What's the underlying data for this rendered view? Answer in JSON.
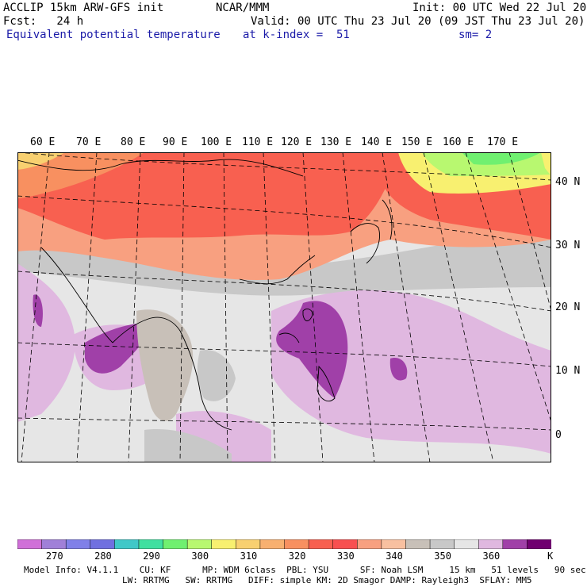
{
  "header": {
    "model": "ACCLIP 15km ARW-GFS init",
    "org": "NCAR/MMM",
    "init": "Init: 00 UTC Wed 22 Jul 20",
    "fcst": "Fcst:   24 h",
    "valid": "Valid: 00 UTC Thu 23 Jul 20 (09 JST Thu 23 Jul 20)",
    "field": "Equivalent potential temperature",
    "level": "at k-index =  51",
    "smooth": "sm= 2"
  },
  "longitudes": [
    "60 E",
    "70 E",
    "80 E",
    "90 E",
    "100 E",
    "110 E",
    "120 E",
    "130 E",
    "140 E",
    "150 E",
    "160 E",
    "170 E"
  ],
  "latitudes": [
    "40 N",
    "30 N",
    "20 N",
    "10 N",
    "0"
  ],
  "colorbar": {
    "colors": [
      "#d070d8",
      "#a080d8",
      "#8080e8",
      "#7070e0",
      "#40c8c8",
      "#40e0a0",
      "#70f070",
      "#b8f870",
      "#f8f070",
      "#f8d070",
      "#f8b070",
      "#f89060",
      "#f86050",
      "#f85050",
      "#f8a080",
      "#f8c0a0",
      "#c8c0b8",
      "#c8c8c8",
      "#e6e6e6",
      "#e0b8e0",
      "#a040a8",
      "#700070"
    ],
    "ticks": [
      "270",
      "280",
      "290",
      "300",
      "310",
      "320",
      "330",
      "340",
      "350",
      "360"
    ],
    "unit": "K"
  },
  "footer": {
    "line1": "Model Info: V4.1.1    CU: KF      MP: WDM 6class  PBL: YSU      SF: Noah LSM     15 km   51 levels   90 sec",
    "line2": "LW: RRTMG   SW: RRTMG   DIFF: simple KM: 2D Smagor DAMP: Rayleigh3  SFLAY: MM5"
  }
}
